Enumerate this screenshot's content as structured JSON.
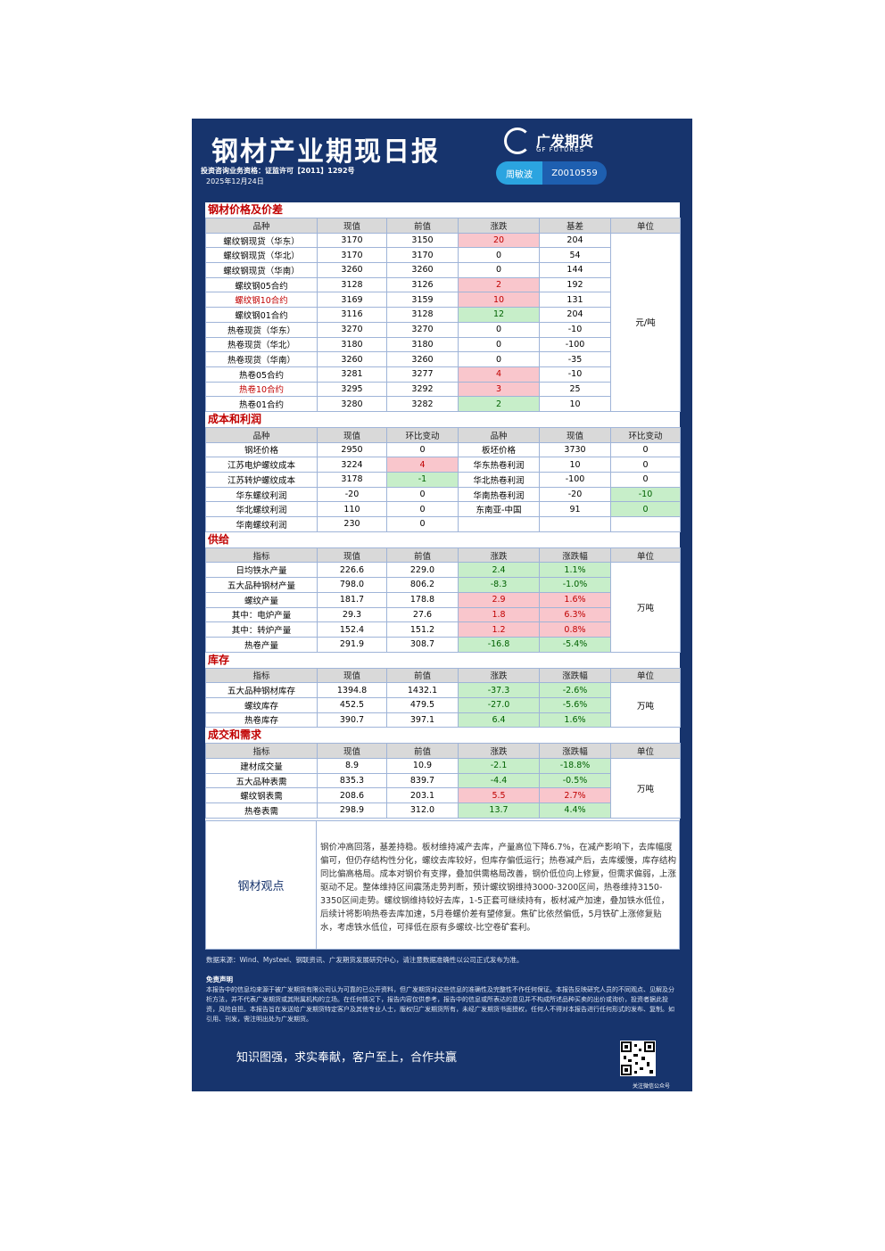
{
  "header": {
    "title": "钢材产业期现日报",
    "license": "投资咨询业务资格：证监许可【2011】1292号",
    "date": "2025年12月24日",
    "logo": "广发期货",
    "logo_en": "GF FUTURES",
    "analyst": "周敏波",
    "analyst_id": "Z0010559"
  },
  "sections": [
    {
      "title": "钢材价格及价差",
      "columns": [
        "品种",
        "现值",
        "前值",
        "涨跌",
        "基差",
        "单位"
      ],
      "unit": "元/吨",
      "rows": [
        [
          "螺纹钢现货（华东）",
          "3170",
          "3150",
          {
            "text": "20",
            "tone": "up"
          },
          "204"
        ],
        [
          "螺纹钢现货（华北）",
          "3170",
          "3170",
          "0",
          "54"
        ],
        [
          "螺纹钢现货（华南）",
          "3260",
          "3260",
          "0",
          "144"
        ],
        [
          "螺纹钢05合约",
          "3128",
          "3126",
          {
            "text": "2",
            "tone": "up"
          },
          "192"
        ],
        [
          {
            "text": "螺纹钢10合约",
            "tone": "alert"
          },
          "3169",
          "3159",
          {
            "text": "10",
            "tone": "up"
          },
          "131"
        ],
        [
          "螺纹钢01合约",
          "3116",
          "3128",
          {
            "text": "12",
            "tone": "down"
          },
          "204"
        ],
        [
          "热卷现货（华东）",
          "3270",
          "3270",
          "0",
          "-10"
        ],
        [
          "热卷现货（华北）",
          "3180",
          "3180",
          "0",
          "-100"
        ],
        [
          "热卷现货（华南）",
          "3260",
          "3260",
          "0",
          "-35"
        ],
        [
          "热卷05合约",
          "3281",
          "3277",
          {
            "text": "4",
            "tone": "up"
          },
          "-10"
        ],
        [
          {
            "text": "热卷10合约",
            "tone": "alert"
          },
          "3295",
          "3292",
          {
            "text": "3",
            "tone": "up"
          },
          "25"
        ],
        [
          "热卷01合约",
          "3280",
          "3282",
          {
            "text": "2",
            "tone": "down"
          },
          "10"
        ]
      ]
    },
    {
      "title": "成本和利润",
      "columns": [
        "品种",
        "现值",
        "环比变动",
        "品种",
        "现值",
        "环比变动"
      ],
      "rows": [
        [
          "钢坯价格",
          "2950",
          "0",
          "板坯价格",
          "3730",
          "0"
        ],
        [
          "江苏电炉螺纹成本",
          "3224",
          {
            "text": "4",
            "tone": "up"
          },
          "华东热卷利润",
          "10",
          "0"
        ],
        [
          "江苏转炉螺纹成本",
          "3178",
          {
            "text": "-1",
            "tone": "down"
          },
          "华北热卷利润",
          "-100",
          "0"
        ],
        [
          "华东螺纹利润",
          "-20",
          "0",
          "华南热卷利润",
          "-20",
          {
            "text": "-10",
            "tone": "down"
          }
        ],
        [
          "华北螺纹利润",
          "110",
          "0",
          "东南亚-中国",
          "91",
          {
            "text": "0",
            "tone": "down"
          }
        ],
        [
          "华南螺纹利润",
          "230",
          "0"
        ]
      ]
    },
    {
      "title": "供给",
      "columns": [
        "指标",
        "现值",
        "前值",
        "涨跌",
        "涨跌幅",
        "单位"
      ],
      "unit": "万吨",
      "rows": [
        [
          "日均铁水产量",
          "226.6",
          "229.0",
          {
            "text": "2.4",
            "tone": "down"
          },
          {
            "text": "1.1%",
            "tone": "down"
          }
        ],
        [
          "五大品种钢材产量",
          "798.0",
          "806.2",
          {
            "text": "-8.3",
            "tone": "down"
          },
          {
            "text": "-1.0%",
            "tone": "down"
          }
        ],
        [
          "螺纹产量",
          "181.7",
          "178.8",
          {
            "text": "2.9",
            "tone": "up"
          },
          {
            "text": "1.6%",
            "tone": "up"
          }
        ],
        [
          "其中：电炉产量",
          "29.3",
          "27.6",
          {
            "text": "1.8",
            "tone": "up"
          },
          {
            "text": "6.3%",
            "tone": "up"
          }
        ],
        [
          "其中：转炉产量",
          "152.4",
          "151.2",
          {
            "text": "1.2",
            "tone": "up"
          },
          {
            "text": "0.8%",
            "tone": "up"
          }
        ],
        [
          "热卷产量",
          "291.9",
          "308.7",
          {
            "text": "-16.8",
            "tone": "down"
          },
          {
            "text": "-5.4%",
            "tone": "down"
          }
        ]
      ]
    },
    {
      "title": "库存",
      "columns": [
        "指标",
        "现值",
        "前值",
        "涨跌",
        "涨跌幅",
        "单位"
      ],
      "unit": "万吨",
      "rows": [
        [
          "五大品种钢材库存",
          "1394.8",
          "1432.1",
          {
            "text": "-37.3",
            "tone": "down"
          },
          {
            "text": "-2.6%",
            "tone": "down"
          }
        ],
        [
          "螺纹库存",
          "452.5",
          "479.5",
          {
            "text": "-27.0",
            "tone": "down"
          },
          {
            "text": "-5.6%",
            "tone": "down"
          }
        ],
        [
          "热卷库存",
          "390.7",
          "397.1",
          {
            "text": "6.4",
            "tone": "down"
          },
          {
            "text": "1.6%",
            "tone": "down"
          }
        ]
      ]
    },
    {
      "title": "成交和需求",
      "columns": [
        "指标",
        "现值",
        "前值",
        "涨跌",
        "涨跌幅",
        "单位"
      ],
      "unit": "万吨",
      "rows": [
        [
          "建材成交量",
          "8.9",
          "10.9",
          {
            "text": "-2.1",
            "tone": "down"
          },
          {
            "text": "-18.8%",
            "tone": "down"
          }
        ],
        [
          "五大品种表需",
          "835.3",
          "839.7",
          {
            "text": "-4.4",
            "tone": "down"
          },
          {
            "text": "-0.5%",
            "tone": "down"
          }
        ],
        [
          "螺纹钢表需",
          "208.6",
          "203.1",
          {
            "text": "5.5",
            "tone": "up"
          },
          {
            "text": "2.7%",
            "tone": "up"
          }
        ],
        [
          "热卷表需",
          "298.9",
          "312.0",
          {
            "text": "13.7",
            "tone": "down"
          },
          {
            "text": "4.4%",
            "tone": "down"
          }
        ]
      ]
    }
  ],
  "viewpoint": {
    "label": "钢材观点",
    "text": "钢价冲高回落，基差持稳。板材维持减产去库，产量高位下降6.7%，在减产影响下，去库幅度偏可，但仍存结构性分化，螺纹去库较好，但库存偏低运行；热卷减产后，去库缓慢，库存结构同比偏高格局。成本对钢价有支撑，叠加供需格局改善，钢价低位向上修复，但需求偏弱，上涨驱动不足。整体维持区间震荡走势判断，预计螺纹钢维持3000-3200区间，热卷维持3150-3350区间走势。螺纹钢维持较好去库，1-5正套可继续持有，板材减产加速，叠加铁水低位，后续计将影响热卷去库加速，5月卷螺价差有望修复。焦矿比依然偏低，5月铁矿上涨修复贴水，考虑铁水低位，可择低在原有多螺纹-比空卷矿套利。"
  },
  "footer": {
    "source": "数据来源：Wind、Mysteel、钢联资讯、广发期货发展研究中心，请注意数据准确性以公司正式发布为准。",
    "disclaimer_title": "免责声明",
    "disclaimer": "本报告中的信息均来源于被广发期货有限公司认为可靠的已公开资料，但广发期货对这些信息的准确性及完整性不作任何保证。本报告反映研究人员的不同观点、见解及分析方法，并不代表广发期货或其附属机构的立场。在任何情况下，报告内容仅供参考，报告中的信息或所表达的意见并不构成所述品种买卖的出价或询价，投资者据此投资，风险自担。本报告旨在发送给广发期货特定客户及其他专业人士，版权归广发期货所有，未经广发期货书面授权，任何人不得对本报告进行任何形式的发布、复制。如引用、刊发，需注明出处为广发期货。",
    "slogan": "知识图强，求实奉献，客户至上，合作共赢",
    "qr_caption": "关注微信公众号"
  }
}
